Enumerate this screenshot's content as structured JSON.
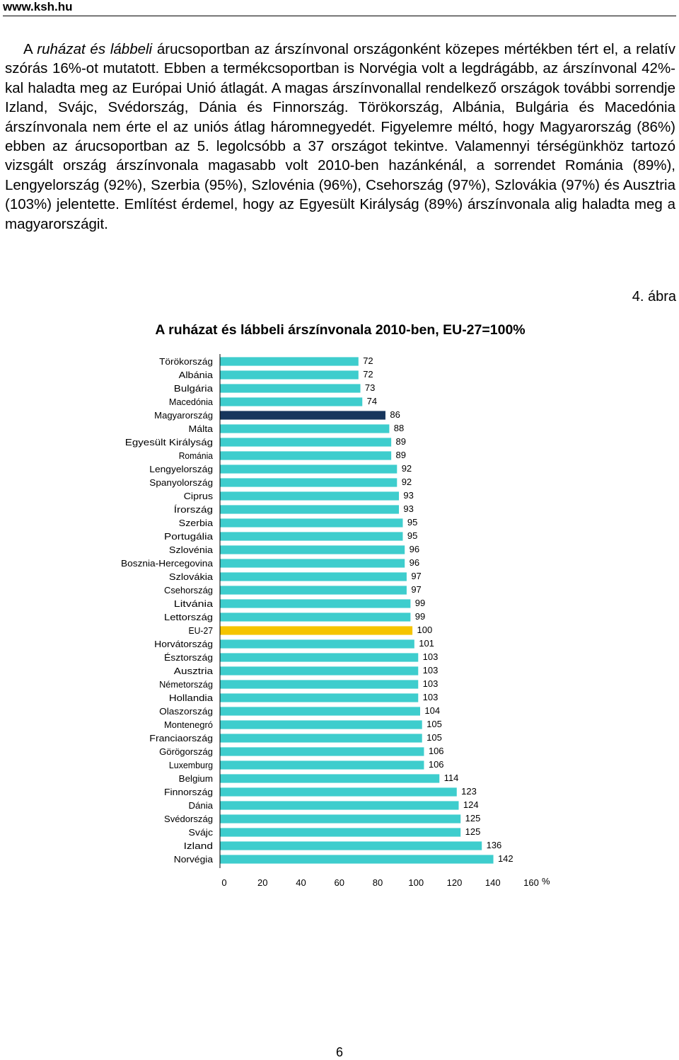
{
  "header": {
    "site": "www.ksh.hu"
  },
  "body": {
    "intro": "A ",
    "intro_italic": "ruházat és lábbeli",
    "rest": " árucsoportban az árszínvonal országonként közepes mértékben tért el, a relatív szórás 16%-ot mutatott. Ebben a termékcsoportban is Norvégia volt a legdrágább, az árszínvonal 42%-kal haladta meg az Európai Unió átlagát. A magas árszínvonallal rendelkező országok további sorrendje Izland, Svájc, Svédország, Dánia és Finnország. Törökország, Albánia, Bulgária és Macedónia árszínvonala nem érte el az uniós átlag háromnegyedét. Figyelemre méltó, hogy Magyarország (86%) ebben az árucsoportban az 5. legolcsóbb a 37 országot tekintve. Valamennyi térségünkhöz tartozó vizsgált ország árszínvonala magasabb volt 2010-ben hazánkénál, a sorrendet Románia (89%), Lengyelország (92%), Szerbia (95%), Szlovénia (96%), Csehország (97%), Szlovákia (97%) és Ausztria (103%) jelentette. Említést érdemel, hogy az Egyesült Királyság (89%) árszínvonala alig haladta meg a magyarországit."
  },
  "figure_label": "4. ábra",
  "page_number": "6",
  "colors": {
    "default_bar": "#3ecdcd",
    "highlight_hu": "#17365d",
    "highlight_eu": "#f5c400",
    "bar_outline": "#ffffff"
  },
  "chart_data": {
    "type": "bar",
    "orientation": "horizontal",
    "title": "A ruházat és lábbeli árszínvonala 2010-ben, EU-27=100%",
    "xlabel": "%",
    "xlim": [
      0,
      160
    ],
    "xticks": [
      0,
      20,
      40,
      60,
      80,
      100,
      120,
      140,
      160
    ],
    "grid": false,
    "data_labels": true,
    "categories": [
      "Törökország",
      "Albánia",
      "Bulgária",
      "Macedónia",
      "Magyarország",
      "Málta",
      "Egyesült Királyság",
      "Románia",
      "Lengyelország",
      "Spanyolország",
      "Ciprus",
      "Írország",
      "Szerbia",
      "Portugália",
      "Szlovénia",
      "Bosznia-Hercegovina",
      "Szlovákia",
      "Csehország",
      "Litvánia",
      "Lettország",
      "EU-27",
      "Horvátország",
      "Észtország",
      "Ausztria",
      "Németország",
      "Hollandia",
      "Olaszország",
      "Montenegró",
      "Franciaország",
      "Görögország",
      "Luxemburg",
      "Belgium",
      "Finnország",
      "Dánia",
      "Svédország",
      "Svájc",
      "Izland",
      "Norvégia"
    ],
    "values": [
      72,
      72,
      73,
      74,
      86,
      88,
      89,
      89,
      92,
      92,
      93,
      93,
      95,
      95,
      96,
      96,
      97,
      97,
      99,
      99,
      100,
      101,
      103,
      103,
      103,
      103,
      104,
      105,
      105,
      106,
      106,
      114,
      123,
      124,
      125,
      125,
      136,
      142
    ],
    "highlight": {
      "Magyarország": "highlight_hu",
      "EU-27": "highlight_eu"
    }
  }
}
